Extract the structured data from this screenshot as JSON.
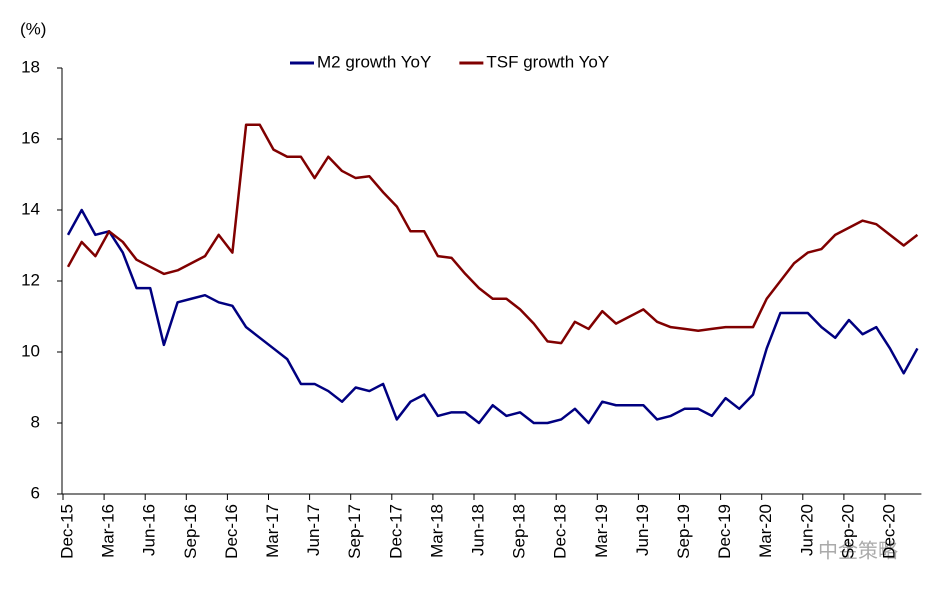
{
  "chart_data": {
    "type": "line",
    "y_label": "(%)",
    "watermark": "中金策略",
    "categories": [
      "Dec-15",
      null,
      null,
      "Mar-16",
      null,
      null,
      "Jun-16",
      null,
      null,
      "Sep-16",
      null,
      null,
      "Dec-16",
      null,
      null,
      "Mar-17",
      null,
      null,
      "Jun-17",
      null,
      null,
      "Sep-17",
      null,
      null,
      "Dec-17",
      null,
      null,
      "Mar-18",
      null,
      null,
      "Jun-18",
      null,
      null,
      "Sep-18",
      null,
      null,
      "Dec-18",
      null,
      null,
      "Mar-19",
      null,
      null,
      "Jun-19",
      null,
      null,
      "Sep-19",
      null,
      null,
      "Dec-19",
      null,
      null,
      "Mar-20",
      null,
      null,
      "Jun-20",
      null,
      null,
      "Sep-20",
      null,
      null,
      "Dec-20",
      null,
      null
    ],
    "series": [
      {
        "name": "M2 growth YoY",
        "color": "#000080",
        "values": [
          13.3,
          14.0,
          13.3,
          13.4,
          12.8,
          11.8,
          11.8,
          10.2,
          11.4,
          11.5,
          11.6,
          11.4,
          11.3,
          10.7,
          10.4,
          10.1,
          9.8,
          9.1,
          9.1,
          8.9,
          8.6,
          9.0,
          8.9,
          9.1,
          8.1,
          8.6,
          8.8,
          8.2,
          8.3,
          8.3,
          8.0,
          8.5,
          8.2,
          8.3,
          8.0,
          8.0,
          8.1,
          8.4,
          8.0,
          8.6,
          8.5,
          8.5,
          8.5,
          8.1,
          8.2,
          8.4,
          8.4,
          8.2,
          8.7,
          8.4,
          8.8,
          10.1,
          11.1,
          11.1,
          11.1,
          10.7,
          10.4,
          10.9,
          10.5,
          10.7,
          10.1,
          9.4,
          10.1
        ]
      },
      {
        "name": "TSF growth YoY",
        "color": "#800000",
        "values": [
          12.4,
          13.1,
          12.7,
          13.4,
          13.1,
          12.6,
          12.4,
          12.2,
          12.3,
          12.5,
          12.7,
          13.3,
          12.8,
          16.4,
          16.4,
          15.7,
          15.5,
          15.5,
          14.9,
          15.5,
          15.1,
          14.9,
          14.95,
          14.5,
          14.1,
          13.4,
          13.4,
          12.7,
          12.65,
          12.2,
          11.8,
          11.5,
          11.5,
          11.2,
          10.8,
          10.3,
          10.25,
          10.85,
          10.65,
          11.15,
          10.8,
          11.0,
          11.2,
          10.85,
          10.7,
          10.65,
          10.6,
          10.65,
          10.7,
          10.7,
          10.7,
          11.5,
          12.0,
          12.5,
          12.8,
          12.9,
          13.3,
          13.5,
          13.7,
          13.6,
          13.3,
          13.0,
          13.3
        ]
      }
    ],
    "ylim": [
      6,
      18
    ],
    "yticks": [
      6,
      8,
      10,
      12,
      14,
      16,
      18
    ],
    "grid": false,
    "legend": "top"
  }
}
